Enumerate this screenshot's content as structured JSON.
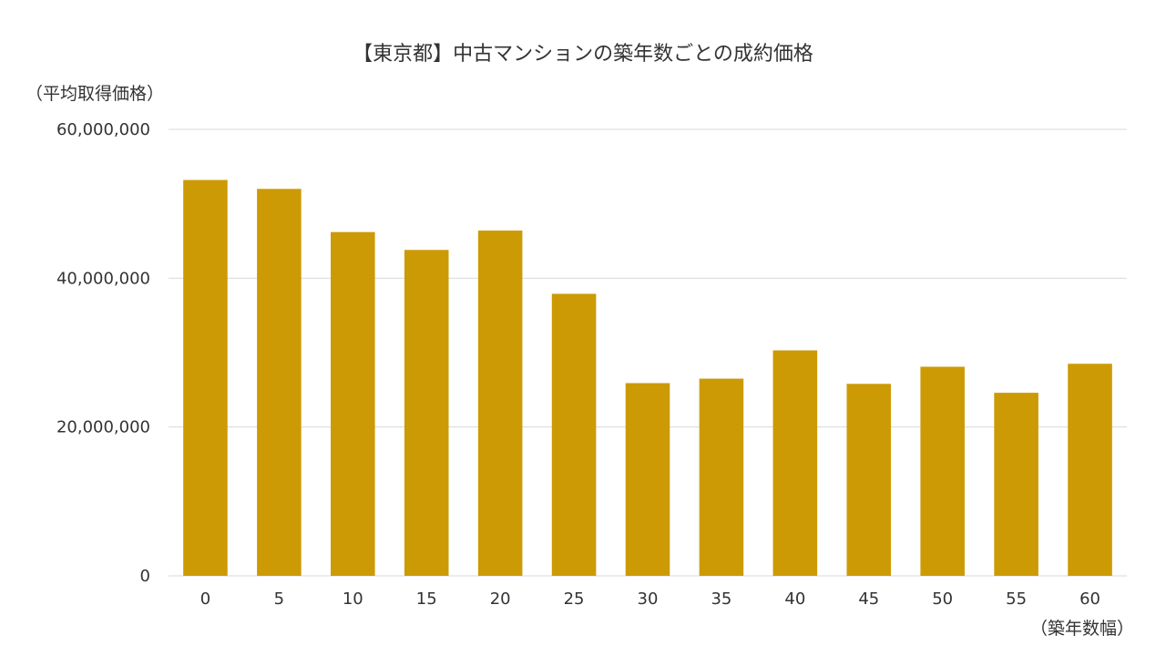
{
  "chart_data": {
    "type": "bar",
    "title": "【東京都】中古マンションの築年数ごとの成約価格",
    "xlabel": "（築年数幅）",
    "ylabel": "（平均取得価格）",
    "categories": [
      "0",
      "5",
      "10",
      "15",
      "20",
      "25",
      "30",
      "35",
      "40",
      "45",
      "50",
      "55",
      "60"
    ],
    "values": [
      53200000,
      52000000,
      46200000,
      43800000,
      46400000,
      37900000,
      25900000,
      26500000,
      30300000,
      25800000,
      28100000,
      24600000,
      28500000
    ],
    "ylim": [
      0,
      60000000
    ],
    "yticks": [
      0,
      20000000,
      40000000,
      60000000
    ],
    "ytick_labels": [
      "0",
      "20,000,000",
      "40,000,000",
      "60,000,000"
    ],
    "grid": true,
    "legend": "none",
    "bar_color": "#CC9A04"
  }
}
